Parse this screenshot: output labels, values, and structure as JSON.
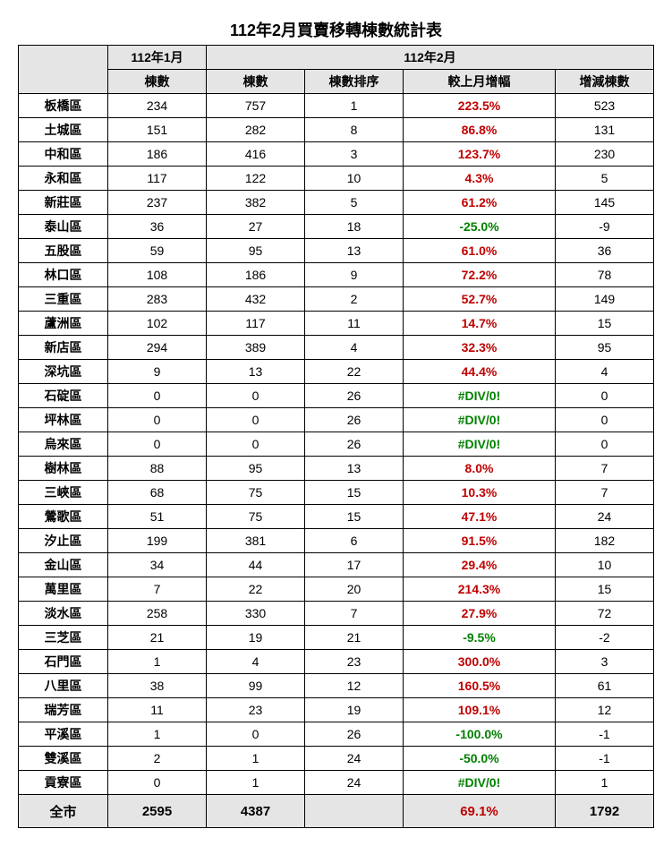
{
  "title": "112年2月買賣移轉棟數統計表",
  "header": {
    "blank": "",
    "jan_group": "112年1月",
    "feb_group": "112年2月",
    "jan_count": "棟數",
    "feb_count": "棟數",
    "feb_rank": "棟數排序",
    "feb_pct": "較上月增幅",
    "feb_diff": "增減棟數"
  },
  "rows": [
    {
      "d": "板橋區",
      "jan": "234",
      "feb": "757",
      "rank": "1",
      "pct": "223.5%",
      "pcls": "pos",
      "diff": "523"
    },
    {
      "d": "土城區",
      "jan": "151",
      "feb": "282",
      "rank": "8",
      "pct": "86.8%",
      "pcls": "pos",
      "diff": "131"
    },
    {
      "d": "中和區",
      "jan": "186",
      "feb": "416",
      "rank": "3",
      "pct": "123.7%",
      "pcls": "pos",
      "diff": "230"
    },
    {
      "d": "永和區",
      "jan": "117",
      "feb": "122",
      "rank": "10",
      "pct": "4.3%",
      "pcls": "pos",
      "diff": "5"
    },
    {
      "d": "新莊區",
      "jan": "237",
      "feb": "382",
      "rank": "5",
      "pct": "61.2%",
      "pcls": "pos",
      "diff": "145"
    },
    {
      "d": "泰山區",
      "jan": "36",
      "feb": "27",
      "rank": "18",
      "pct": "-25.0%",
      "pcls": "neg",
      "diff": "-9"
    },
    {
      "d": "五股區",
      "jan": "59",
      "feb": "95",
      "rank": "13",
      "pct": "61.0%",
      "pcls": "pos",
      "diff": "36"
    },
    {
      "d": "林口區",
      "jan": "108",
      "feb": "186",
      "rank": "9",
      "pct": "72.2%",
      "pcls": "pos",
      "diff": "78"
    },
    {
      "d": "三重區",
      "jan": "283",
      "feb": "432",
      "rank": "2",
      "pct": "52.7%",
      "pcls": "pos",
      "diff": "149"
    },
    {
      "d": "蘆洲區",
      "jan": "102",
      "feb": "117",
      "rank": "11",
      "pct": "14.7%",
      "pcls": "pos",
      "diff": "15"
    },
    {
      "d": "新店區",
      "jan": "294",
      "feb": "389",
      "rank": "4",
      "pct": "32.3%",
      "pcls": "pos",
      "diff": "95"
    },
    {
      "d": "深坑區",
      "jan": "9",
      "feb": "13",
      "rank": "22",
      "pct": "44.4%",
      "pcls": "pos",
      "diff": "4"
    },
    {
      "d": "石碇區",
      "jan": "0",
      "feb": "0",
      "rank": "26",
      "pct": "#DIV/0!",
      "pcls": "neg",
      "diff": "0"
    },
    {
      "d": "坪林區",
      "jan": "0",
      "feb": "0",
      "rank": "26",
      "pct": "#DIV/0!",
      "pcls": "neg",
      "diff": "0"
    },
    {
      "d": "烏來區",
      "jan": "0",
      "feb": "0",
      "rank": "26",
      "pct": "#DIV/0!",
      "pcls": "neg",
      "diff": "0"
    },
    {
      "d": "樹林區",
      "jan": "88",
      "feb": "95",
      "rank": "13",
      "pct": "8.0%",
      "pcls": "pos",
      "diff": "7"
    },
    {
      "d": "三峽區",
      "jan": "68",
      "feb": "75",
      "rank": "15",
      "pct": "10.3%",
      "pcls": "pos",
      "diff": "7"
    },
    {
      "d": "鶯歌區",
      "jan": "51",
      "feb": "75",
      "rank": "15",
      "pct": "47.1%",
      "pcls": "pos",
      "diff": "24"
    },
    {
      "d": "汐止區",
      "jan": "199",
      "feb": "381",
      "rank": "6",
      "pct": "91.5%",
      "pcls": "pos",
      "diff": "182"
    },
    {
      "d": "金山區",
      "jan": "34",
      "feb": "44",
      "rank": "17",
      "pct": "29.4%",
      "pcls": "pos",
      "diff": "10"
    },
    {
      "d": "萬里區",
      "jan": "7",
      "feb": "22",
      "rank": "20",
      "pct": "214.3%",
      "pcls": "pos",
      "diff": "15"
    },
    {
      "d": "淡水區",
      "jan": "258",
      "feb": "330",
      "rank": "7",
      "pct": "27.9%",
      "pcls": "pos",
      "diff": "72"
    },
    {
      "d": "三芝區",
      "jan": "21",
      "feb": "19",
      "rank": "21",
      "pct": "-9.5%",
      "pcls": "neg",
      "diff": "-2"
    },
    {
      "d": "石門區",
      "jan": "1",
      "feb": "4",
      "rank": "23",
      "pct": "300.0%",
      "pcls": "pos",
      "diff": "3"
    },
    {
      "d": "八里區",
      "jan": "38",
      "feb": "99",
      "rank": "12",
      "pct": "160.5%",
      "pcls": "pos",
      "diff": "61"
    },
    {
      "d": "瑞芳區",
      "jan": "11",
      "feb": "23",
      "rank": "19",
      "pct": "109.1%",
      "pcls": "pos",
      "diff": "12"
    },
    {
      "d": "平溪區",
      "jan": "1",
      "feb": "0",
      "rank": "26",
      "pct": "-100.0%",
      "pcls": "neg",
      "diff": "-1"
    },
    {
      "d": "雙溪區",
      "jan": "2",
      "feb": "1",
      "rank": "24",
      "pct": "-50.0%",
      "pcls": "neg",
      "diff": "-1"
    },
    {
      "d": "貢寮區",
      "jan": "0",
      "feb": "1",
      "rank": "24",
      "pct": "#DIV/0!",
      "pcls": "neg",
      "diff": "1"
    }
  ],
  "total": {
    "label": "全市",
    "jan": "2595",
    "feb": "4387",
    "rank": "",
    "pct": "69.1%",
    "pcls": "pos",
    "diff": "1792"
  }
}
